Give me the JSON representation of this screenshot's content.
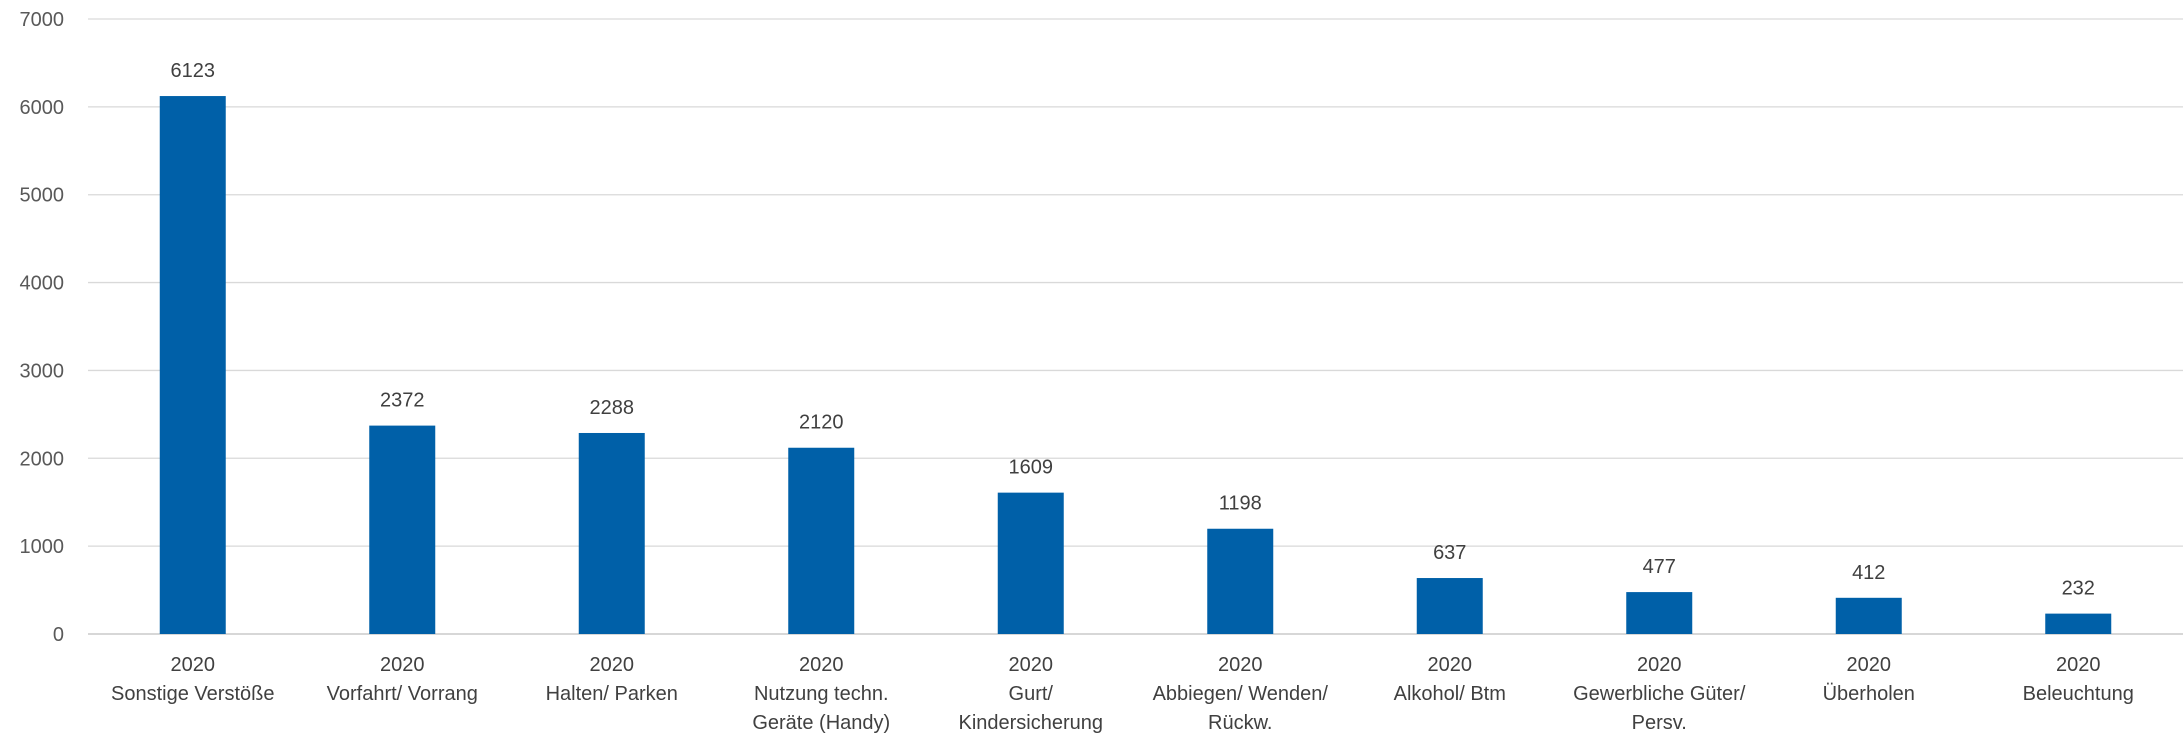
{
  "chart_data": {
    "type": "bar",
    "title": "",
    "xlabel": "",
    "ylabel": "",
    "ylim": [
      0,
      7000
    ],
    "yticks": [
      0,
      1000,
      2000,
      3000,
      4000,
      5000,
      6000,
      7000
    ],
    "grid": true,
    "legend": "none",
    "bar_color": "#0060A8",
    "categories": [
      [
        "2020",
        "Sonstige Verstöße"
      ],
      [
        "2020",
        "Vorfahrt/ Vorrang"
      ],
      [
        "2020",
        "Halten/ Parken"
      ],
      [
        "2020",
        "Nutzung techn.",
        "Geräte (Handy)"
      ],
      [
        "2020",
        "Gurt/",
        "Kindersicherung"
      ],
      [
        "2020",
        "Abbiegen/ Wenden/",
        "Rückw."
      ],
      [
        "2020",
        "Alkohol/ Btm"
      ],
      [
        "2020",
        "Gewerbliche Güter/",
        "Persv."
      ],
      [
        "2020",
        "Überholen"
      ],
      [
        "2020",
        "Beleuchtung"
      ]
    ],
    "values": [
      6123,
      2372,
      2288,
      2120,
      1609,
      1198,
      637,
      477,
      412,
      232
    ]
  }
}
